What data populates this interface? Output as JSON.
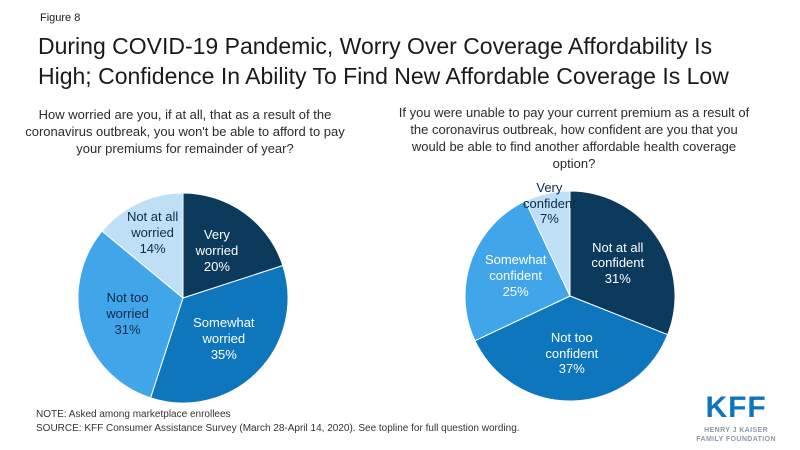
{
  "figure_label": "Figure 8",
  "title": {
    "line1": "During COVID-19 Pandemic, Worry Over Coverage Affordability Is",
    "line2": "High; Confidence In Ability To Find New Affordable Coverage Is Low"
  },
  "notes": {
    "note": "NOTE: Asked among marketplace enrollees",
    "source": "SOURCE: KFF Consumer Assistance Survey (March 28-April 14, 2020). See topline for full question wording."
  },
  "logo": {
    "name": "KFF",
    "sub1": "HENRY J KAISER",
    "sub2": "FAMILY FOUNDATION",
    "brand_color": "#0e76bc"
  },
  "chart_data": [
    {
      "type": "pie",
      "question": "How worried are you, if at all, that as a result of the coronavirus outbreak, you won't be able to afford to pay your premiums for remainder of year?",
      "start_angle_deg": 0,
      "direction": "clockwise",
      "legend_position": "inside-slices",
      "slices": [
        {
          "label": "Very worried",
          "value": 20,
          "color": "#0b3a5d",
          "text_color": "#ffffff",
          "label_width": 62
        },
        {
          "label": "Somewhat worried",
          "value": 35,
          "color": "#0e76bc",
          "text_color": "#ffffff"
        },
        {
          "label": "Not too worried",
          "value": 31,
          "color": "#41a5e9",
          "text_color": "#0e2a45"
        },
        {
          "label": "Not at all worried",
          "value": 14,
          "color": "#bedff6",
          "text_color": "#0e2a45",
          "label_radius": 0.68
        }
      ]
    },
    {
      "type": "pie",
      "question": "If you were unable to pay your current premium as a result of the coronavirus outbreak, how confident are you that you would be able to find another affordable health coverage option?",
      "start_angle_deg": 0,
      "direction": "clockwise",
      "legend_position": "inside-slices",
      "slices": [
        {
          "label": "Not at all confident",
          "value": 31,
          "color": "#0b3a5d",
          "text_color": "#ffffff"
        },
        {
          "label": "Not too confident",
          "value": 37,
          "color": "#0e76bc",
          "text_color": "#ffffff"
        },
        {
          "label": "Somewhat confident",
          "value": 25,
          "color": "#41a5e9",
          "text_color": "#ffffff"
        },
        {
          "label": "Very confident",
          "value": 7,
          "color": "#bedff6",
          "text_color": "#0e2a45",
          "label_radius": 0.9,
          "label_width": 64
        }
      ]
    }
  ]
}
